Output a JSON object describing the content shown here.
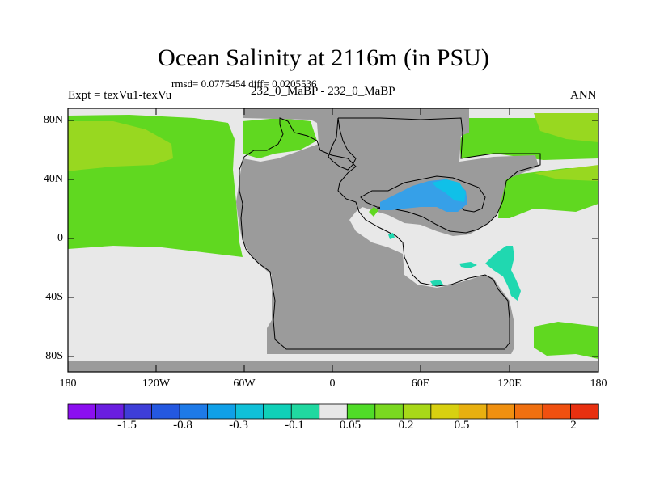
{
  "title": "Ocean Salinity at 2116m (in PSU)",
  "stats": "rmsd= 0.0775454 diff= 0.0205536",
  "experiment": "Expt = texVu1-texVu",
  "period": "232_0_MaBP - 232_0_MaBP",
  "season": "ANN",
  "lat_labels": [
    "80N",
    "40N",
    "0",
    "40S",
    "80S"
  ],
  "lon_labels": [
    "180",
    "120W",
    "60W",
    "0",
    "60E",
    "120E",
    "180"
  ],
  "colorbar": {
    "labels": [
      "-1.5",
      "-0.8",
      "-0.3",
      "-0.1",
      "0.05",
      "0.2",
      "0.5",
      "1",
      "2"
    ],
    "colors": [
      "#8b0ff0",
      "#6a1ee0",
      "#3e3ed8",
      "#2458e0",
      "#1e7ae8",
      "#10a0e8",
      "#10c0d8",
      "#10d0b8",
      "#20d8a0",
      "#e8e8e8",
      "#50dc28",
      "#7ad820",
      "#a8d818",
      "#d8d010",
      "#e8b010",
      "#f09010",
      "#f07010",
      "#f05010",
      "#e83010"
    ]
  },
  "colors": {
    "land": "#9b9b9b",
    "neutral_ocean": "#e8e8e8",
    "positive_ocean": "#60d820",
    "positive_strong": "#98d820",
    "negative_ocean": "#36a0e8",
    "negative_light": "#20d8b0"
  }
}
